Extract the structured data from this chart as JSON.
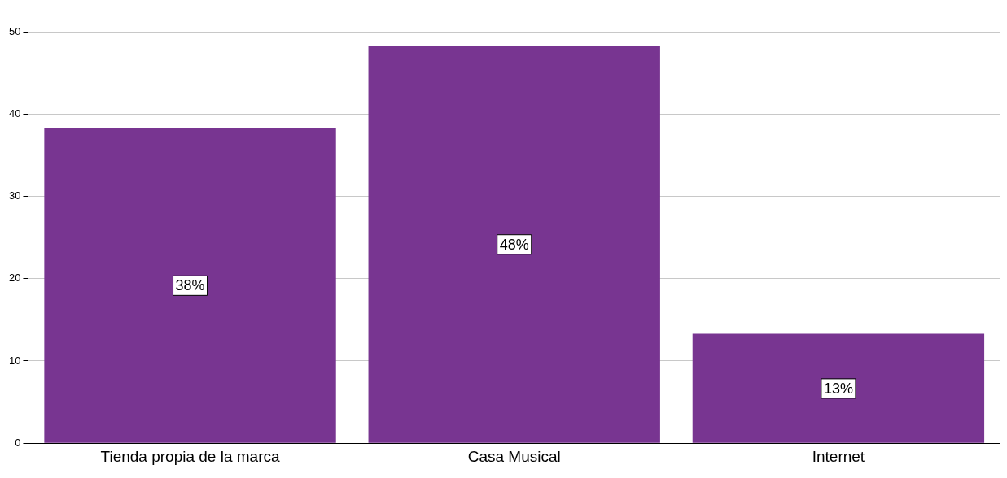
{
  "chart_data": {
    "type": "bar",
    "categories": [
      "Tienda propia de la marca",
      "Casa Musical",
      "Internet"
    ],
    "values": [
      38.3,
      48.3,
      13.3
    ],
    "value_labels": [
      "38%",
      "48%",
      "13%"
    ],
    "color": "#783591",
    "ylim": [
      0,
      52
    ],
    "yticks": [
      0,
      10,
      20,
      30,
      40,
      50
    ],
    "grid": "y",
    "legend": false
  }
}
